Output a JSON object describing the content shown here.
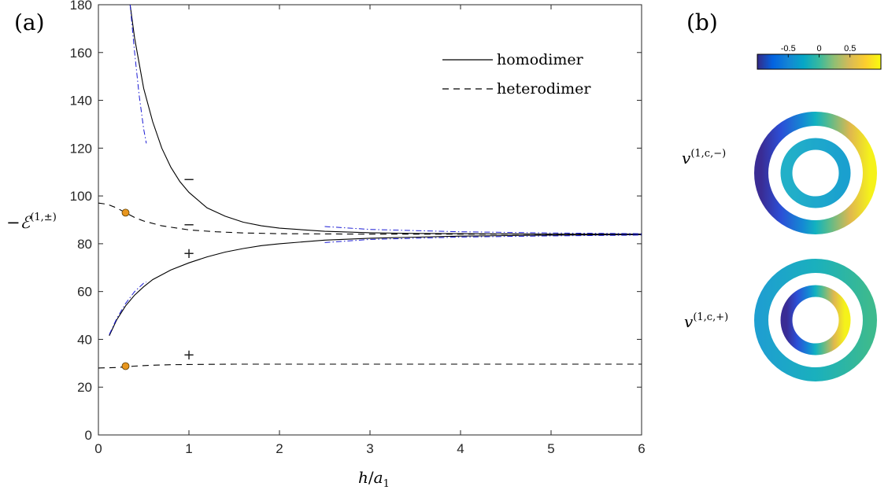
{
  "panels": {
    "a": "(a)",
    "b": "(b)"
  },
  "chart_data": {
    "type": "line",
    "xlabel": "h/a₁",
    "ylabel": "−ℰ(1,±)",
    "xlim": [
      0,
      6
    ],
    "ylim": [
      0,
      180
    ],
    "xticks": [
      0,
      1,
      2,
      3,
      4,
      5,
      6
    ],
    "yticks": [
      0,
      20,
      40,
      60,
      80,
      100,
      120,
      140,
      160,
      180
    ],
    "legend": {
      "position": "top-right",
      "entries": [
        {
          "label": "homodimer",
          "style": "solid"
        },
        {
          "label": "heterodimer",
          "style": "dashed"
        }
      ]
    },
    "series": [
      {
        "name": "homodimer",
        "branch": "−",
        "style": "solid",
        "color": "#000000",
        "x": [
          0.35,
          0.4,
          0.5,
          0.6,
          0.7,
          0.8,
          0.9,
          1.0,
          1.2,
          1.4,
          1.6,
          1.8,
          2.0,
          2.5,
          3.0,
          3.5,
          4.0,
          5.0,
          6.0
        ],
        "y": [
          180,
          166,
          145,
          131,
          120,
          112,
          106,
          101.5,
          95,
          91.5,
          89,
          87.5,
          86.5,
          85.2,
          84.6,
          84.3,
          84.2,
          84.0,
          84.0
        ]
      },
      {
        "name": "homodimer",
        "branch": "+",
        "style": "solid",
        "color": "#000000",
        "x": [
          0.12,
          0.2,
          0.3,
          0.4,
          0.5,
          0.6,
          0.8,
          1.0,
          1.2,
          1.4,
          1.6,
          1.8,
          2.0,
          2.5,
          3.0,
          4.0,
          5.0,
          6.0
        ],
        "y": [
          41.5,
          48,
          54,
          58.5,
          62,
          65,
          69,
          72,
          74.5,
          76.5,
          78,
          79.2,
          80,
          81.5,
          82.3,
          83.2,
          83.6,
          83.8
        ]
      },
      {
        "name": "heterodimer",
        "branch": "−",
        "style": "dashed",
        "color": "#000000",
        "x": [
          0,
          0.1,
          0.2,
          0.3,
          0.4,
          0.5,
          0.7,
          1.0,
          1.3,
          1.6,
          2.0,
          2.5,
          3.0,
          4.0,
          5.0,
          6.0
        ],
        "y": [
          97,
          96.5,
          95,
          93,
          91,
          89.5,
          87.5,
          85.8,
          85,
          84.5,
          84.2,
          84.1,
          84.0,
          84.0,
          84.0,
          84.0
        ]
      },
      {
        "name": "heterodimer",
        "branch": "+",
        "style": "dashed",
        "color": "#000000",
        "x": [
          0,
          0.2,
          0.4,
          0.6,
          0.8,
          1.0,
          1.5,
          2.0,
          3.0,
          4.0,
          5.0,
          6.0
        ],
        "y": [
          28,
          28.2,
          28.8,
          29.2,
          29.4,
          29.5,
          29.6,
          29.6,
          29.6,
          29.6,
          29.6,
          29.6
        ]
      },
      {
        "name": "asymptote",
        "style": "dashdot",
        "color": "#1a1ad4",
        "x": [
          0.35,
          0.4,
          0.45,
          0.5,
          0.53
        ],
        "y": [
          180,
          160,
          142,
          128,
          122
        ]
      },
      {
        "name": "asymptote",
        "style": "dashdot",
        "color": "#1a1ad4",
        "x": [
          0.12,
          0.2,
          0.3,
          0.4,
          0.5,
          0.53
        ],
        "y": [
          42,
          48.5,
          55,
          60,
          63.5,
          64
        ]
      },
      {
        "name": "asymptote",
        "style": "dashdot",
        "color": "#1a1ad4",
        "x": [
          2.5,
          3.0,
          4.0,
          5.0,
          6.0
        ],
        "y": [
          87.2,
          86.0,
          85.0,
          84.5,
          84.2
        ]
      },
      {
        "name": "asymptote",
        "style": "dashdot",
        "color": "#1a1ad4",
        "x": [
          2.5,
          3.0,
          4.0,
          5.0,
          6.0
        ],
        "y": [
          80.5,
          81.8,
          82.8,
          83.3,
          83.6
        ]
      }
    ],
    "markers": [
      {
        "x": 0.3,
        "y": 93,
        "color": "#e8961e"
      },
      {
        "x": 0.3,
        "y": 28.8,
        "color": "#e8961e"
      }
    ],
    "annotations": [
      {
        "text": "−",
        "x": 1.0,
        "y": 107
      },
      {
        "text": "−",
        "x": 1.0,
        "y": 88
      },
      {
        "text": "+",
        "x": 1.0,
        "y": 76
      },
      {
        "text": "+",
        "x": 1.0,
        "y": 33.5
      }
    ]
  },
  "colorbar": {
    "ticks": [
      "-0.5",
      "0",
      "0.5"
    ],
    "tick_values": [
      -0.5,
      0,
      0.5
    ],
    "range": [
      -1,
      1
    ]
  },
  "modes": [
    {
      "label": "v(1,c,−)",
      "label_base": "v",
      "label_sup": "(1,c,−)",
      "outer_ring": "antisymmetric, low on left to high on right",
      "inner_ring": "near zero"
    },
    {
      "label": "v(1,c,+)",
      "label_base": "v",
      "label_sup": "(1,c,+)",
      "outer_ring": "near zero",
      "inner_ring": "antisymmetric, low on left to high on right"
    }
  ]
}
